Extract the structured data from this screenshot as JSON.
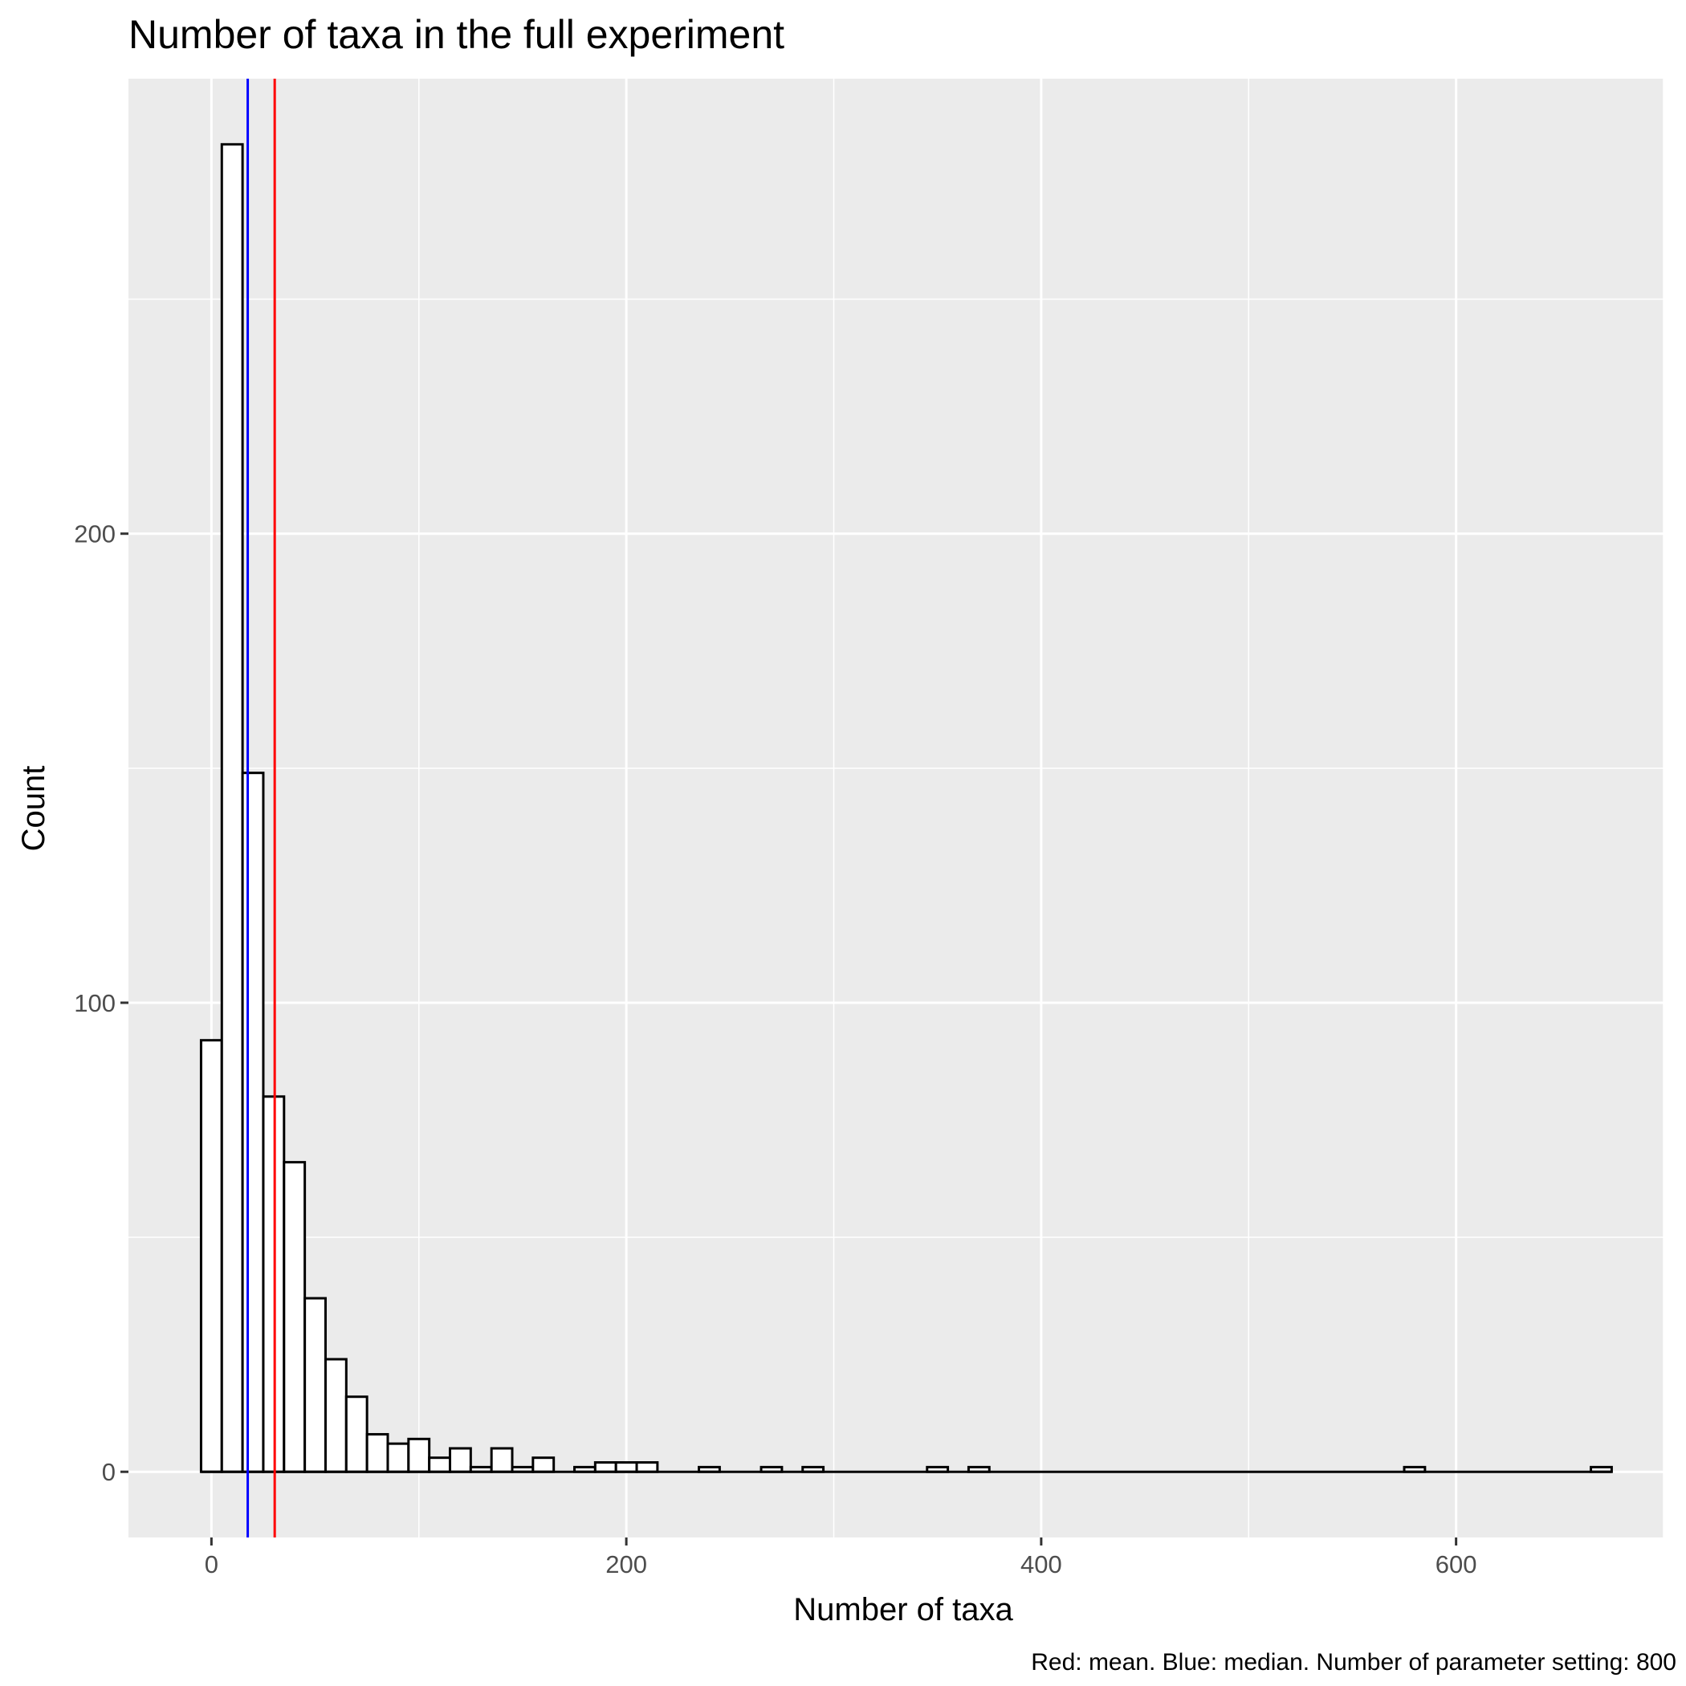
{
  "chart_data": {
    "type": "bar",
    "title": "Number of taxa in the full experiment",
    "xlabel": "Number of taxa",
    "ylabel": "Count",
    "caption": "Red: mean. Blue: median. Number of parameter setting: 800",
    "xlim": [
      -40,
      700
    ],
    "ylim": [
      -14,
      297
    ],
    "x_ticks": [
      0,
      200,
      400,
      600
    ],
    "y_ticks": [
      0,
      100,
      200
    ],
    "grid": true,
    "bin_width": 10,
    "bins": [
      {
        "x": 0,
        "count": 92
      },
      {
        "x": 10,
        "count": 283
      },
      {
        "x": 20,
        "count": 149
      },
      {
        "x": 30,
        "count": 80
      },
      {
        "x": 40,
        "count": 66
      },
      {
        "x": 50,
        "count": 37
      },
      {
        "x": 60,
        "count": 24
      },
      {
        "x": 70,
        "count": 16
      },
      {
        "x": 80,
        "count": 8
      },
      {
        "x": 90,
        "count": 6
      },
      {
        "x": 100,
        "count": 7
      },
      {
        "x": 110,
        "count": 3
      },
      {
        "x": 120,
        "count": 5
      },
      {
        "x": 130,
        "count": 1
      },
      {
        "x": 140,
        "count": 5
      },
      {
        "x": 150,
        "count": 1
      },
      {
        "x": 160,
        "count": 3
      },
      {
        "x": 170,
        "count": 0
      },
      {
        "x": 180,
        "count": 1
      },
      {
        "x": 190,
        "count": 2
      },
      {
        "x": 200,
        "count": 2
      },
      {
        "x": 210,
        "count": 2
      },
      {
        "x": 240,
        "count": 1
      },
      {
        "x": 270,
        "count": 1
      },
      {
        "x": 290,
        "count": 1
      },
      {
        "x": 350,
        "count": 1
      },
      {
        "x": 370,
        "count": 1
      },
      {
        "x": 580,
        "count": 1
      },
      {
        "x": 670,
        "count": 1
      }
    ],
    "x_max_bin_edge": 675,
    "mean": 30.5,
    "median": 17.5,
    "mean_color": "#ff0000",
    "median_color": "#0000ff",
    "panel_background": "#ebebeb",
    "grid_color": "#ffffff",
    "bar_fill": "#ffffff",
    "bar_stroke": "#000000"
  }
}
